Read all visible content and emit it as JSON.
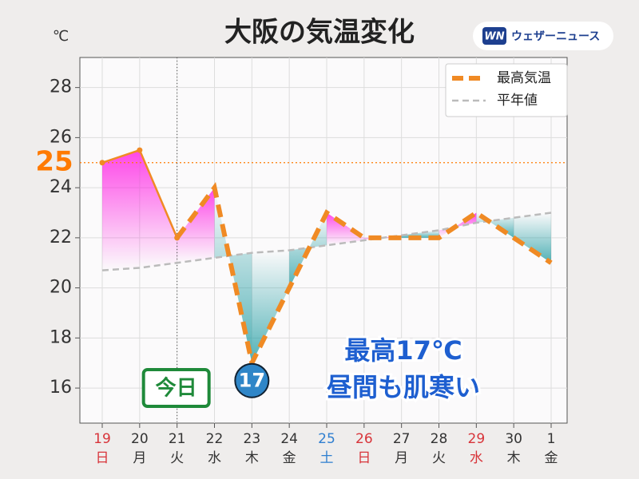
{
  "chart_data": {
    "type": "line",
    "title": "大阪の気温変化",
    "unit": "℃",
    "brand": "ウェザーニュース",
    "brand_logo": "WN",
    "categories": [
      "19",
      "20",
      "21",
      "22",
      "23",
      "24",
      "25",
      "26",
      "27",
      "28",
      "29",
      "30",
      "1"
    ],
    "weekdays": [
      "日",
      "月",
      "火",
      "水",
      "木",
      "金",
      "土",
      "日",
      "月",
      "火",
      "水",
      "木",
      "金"
    ],
    "category_colors": [
      "#d8343a",
      "#333333",
      "#333333",
      "#333333",
      "#333333",
      "#333333",
      "#2f7fd0",
      "#d8343a",
      "#333333",
      "#333333",
      "#d8343a",
      "#333333",
      "#333333"
    ],
    "series": [
      {
        "name": "最高気温",
        "color": "#f08a24",
        "values": [
          25,
          25.5,
          22,
          24,
          17,
          20,
          23,
          22,
          22,
          22,
          23,
          22,
          21
        ]
      },
      {
        "name": "平年値",
        "color": "#bbbbbb",
        "values": [
          20.7,
          20.8,
          21.0,
          21.2,
          21.4,
          21.5,
          21.7,
          21.9,
          22.1,
          22.3,
          22.6,
          22.8,
          23.0
        ]
      }
    ],
    "ylim": [
      14.6,
      29.2
    ],
    "yticks": [
      16,
      18,
      20,
      22,
      24,
      26,
      28
    ],
    "grid": true,
    "legend": "upper right",
    "today_marker": {
      "x": "21",
      "label": "今日"
    },
    "reference_line": {
      "value": 25,
      "color": "#ff7a00"
    },
    "callout": [
      "最高17℃",
      "昼間も肌寒い"
    ]
  }
}
